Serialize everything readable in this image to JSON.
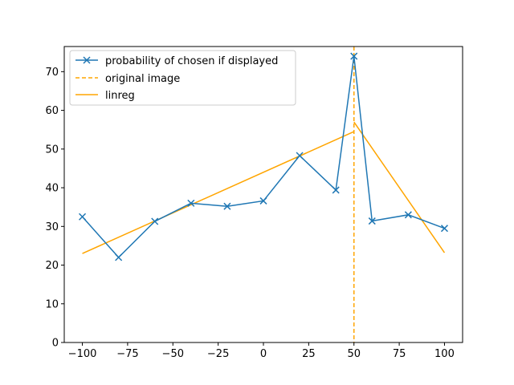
{
  "chart_data": {
    "type": "line",
    "title": "",
    "xlabel": "",
    "ylabel": "",
    "xlim": [
      -110,
      110
    ],
    "ylim": [
      0,
      76.5
    ],
    "xticks": [
      -100,
      -75,
      -50,
      -25,
      0,
      25,
      50,
      75,
      100
    ],
    "xtick_labels": [
      "−100",
      "−75",
      "−50",
      "−25",
      "0",
      "25",
      "50",
      "75",
      "100"
    ],
    "yticks": [
      0,
      10,
      20,
      30,
      40,
      50,
      60,
      70
    ],
    "ytick_labels": [
      "0",
      "10",
      "20",
      "30",
      "40",
      "50",
      "60",
      "70"
    ],
    "grid": false,
    "legend_position": "top-left",
    "series": [
      {
        "name": "probability of chosen if displayed",
        "style": "line-x-marker",
        "color": "#1f77b4",
        "x": [
          -100,
          -80,
          -60,
          -40,
          -20,
          0,
          20,
          40,
          50,
          60,
          80,
          100
        ],
        "y": [
          32.5,
          22.0,
          31.3,
          36.0,
          35.2,
          36.6,
          48.3,
          39.4,
          74.0,
          31.4,
          33.0,
          29.5
        ]
      },
      {
        "name": "original image",
        "style": "vertical-dashed",
        "color": "#ffa500",
        "x_value": 50
      },
      {
        "name": "linreg",
        "style": "line",
        "color": "#ffa500",
        "segments": [
          {
            "x": [
              -100,
              50
            ],
            "y": [
              23.0,
              54.5
            ]
          },
          {
            "x": [
              50,
              100
            ],
            "y": [
              57.0,
              23.2
            ]
          }
        ]
      }
    ]
  }
}
